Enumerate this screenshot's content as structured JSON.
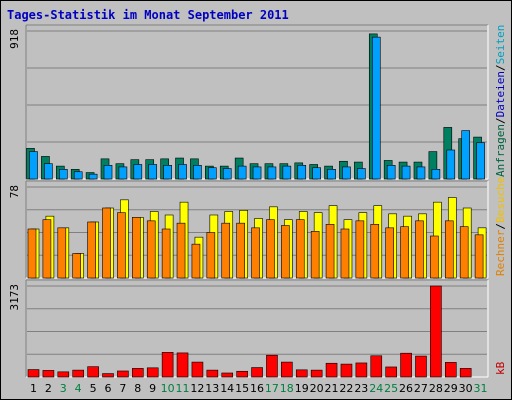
{
  "chart_data": {
    "type": "bar",
    "title": "Tages-Statistik im Monat September 2011",
    "categories": [
      "1",
      "2",
      "3",
      "4",
      "5",
      "6",
      "7",
      "8",
      "9",
      "10",
      "11",
      "12",
      "13",
      "14",
      "15",
      "16",
      "17",
      "18",
      "19",
      "20",
      "21",
      "22",
      "23",
      "24",
      "25",
      "26",
      "27",
      "28",
      "29",
      "30",
      "31"
    ],
    "weekend_days": [
      "3",
      "4",
      "10",
      "11",
      "17",
      "18",
      "24",
      "25",
      "31"
    ],
    "panels": [
      {
        "name": "hits",
        "ymax_label": "918",
        "ylim": [
          0,
          918
        ],
        "side_legend": [
          {
            "text": "Anfragen",
            "color": "#006040"
          },
          {
            "text": "/",
            "color": "#000000"
          },
          {
            "text": "Dateien",
            "color": "#0000c0"
          },
          {
            "text": "/",
            "color": "#000000"
          },
          {
            "text": "Seiten",
            "color": "#00a0c0"
          }
        ],
        "series": [
          {
            "name": "Anfragen",
            "color": "#008060",
            "values": [
              190,
              140,
              80,
              60,
              40,
              125,
              95,
              120,
              120,
              125,
              130,
              125,
              80,
              80,
              130,
              95,
              95,
              95,
              100,
              90,
              80,
              110,
              105,
              900,
              115,
              105,
              105,
              170,
              320,
              250,
              260
            ]
          },
          {
            "name": "Dateien",
            "color": "#00a0ff",
            "values": [
              170,
              95,
              60,
              45,
              30,
              85,
              75,
              90,
              90,
              85,
              90,
              85,
              70,
              65,
              80,
              75,
              75,
              80,
              85,
              70,
              60,
              75,
              65,
              880,
              85,
              80,
              75,
              60,
              180,
              300,
              225
            ]
          },
          {
            "name": "Seiten",
            "color": "#00c8d8",
            "values": [
              0,
              0,
              0,
              0,
              0,
              0,
              0,
              0,
              0,
              0,
              0,
              0,
              0,
              0,
              0,
              0,
              0,
              0,
              0,
              0,
              0,
              0,
              0,
              0,
              0,
              0,
              0,
              0,
              0,
              0,
              0
            ]
          }
        ]
      },
      {
        "name": "visits",
        "ymax_label": "78",
        "ylim": [
          0,
          78
        ],
        "side_legend": [
          {
            "text": "Rechner",
            "color": "#e08000"
          },
          {
            "text": "/",
            "color": "#000000"
          },
          {
            "text": "Besuche",
            "color": "#f0c000"
          }
        ],
        "series": [
          {
            "name": "Besuche",
            "color": "#ffff00",
            "values": [
              42,
              53,
              43,
              21,
              48,
              60,
              67,
              52,
              57,
              54,
              65,
              35,
              54,
              57,
              58,
              51,
              61,
              50,
              57,
              56,
              62,
              50,
              56,
              62,
              55,
              53,
              55,
              65,
              69,
              60,
              43
            ]
          },
          {
            "name": "Rechner",
            "color": "#ff8000",
            "values": [
              42,
              50,
              43,
              21,
              48,
              60,
              56,
              52,
              49,
              42,
              47,
              29,
              39,
              47,
              47,
              43,
              50,
              45,
              50,
              40,
              46,
              42,
              49,
              46,
              43,
              44,
              49,
              36,
              49,
              44,
              37
            ]
          }
        ]
      },
      {
        "name": "kbytes",
        "ymax_label": "3173",
        "ylim": [
          0,
          3173
        ],
        "side_legend": [
          {
            "text": "kB",
            "color": "#c00000"
          }
        ],
        "series": [
          {
            "name": "kB",
            "color": "#ff0000",
            "values": [
              260,
              230,
              180,
              240,
              360,
              120,
              210,
              300,
              320,
              860,
              840,
              520,
              240,
              140,
              200,
              330,
              760,
              520,
              250,
              240,
              480,
              450,
              490,
              740,
              350,
              830,
              730,
              3173,
              510,
              300,
              0
            ]
          }
        ]
      }
    ]
  }
}
